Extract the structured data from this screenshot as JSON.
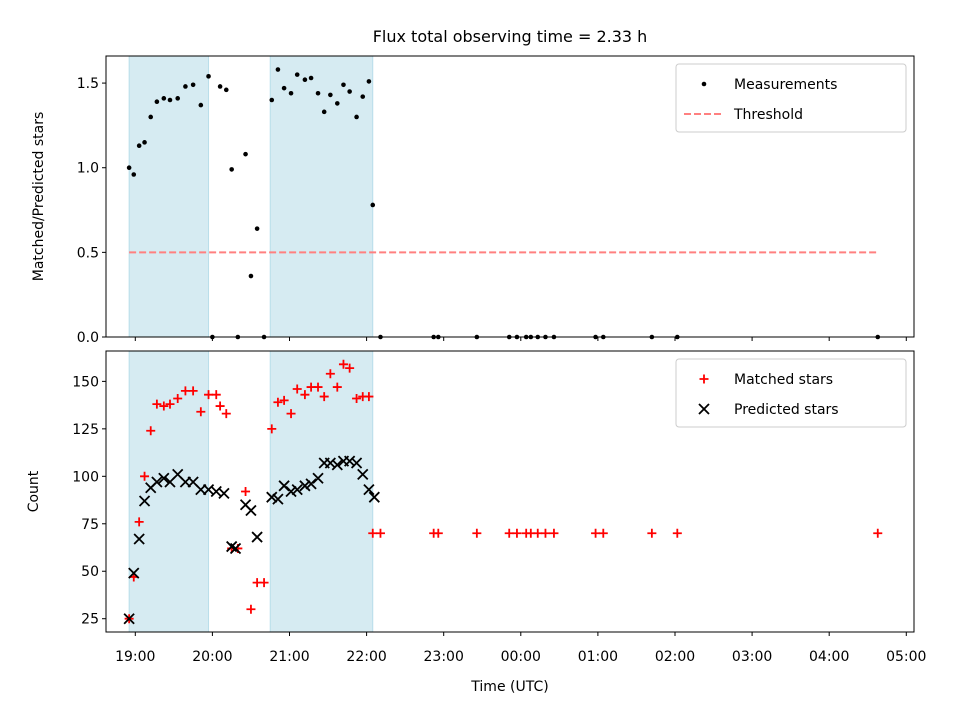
{
  "chart_data": [
    {
      "type": "scatter",
      "title": "Flux total observing time = 2.33 h",
      "xlabel": "",
      "ylabel": "Matched/Predicted stars",
      "xlim": [
        18.62,
        29.1
      ],
      "ylim": [
        0,
        1.66
      ],
      "yticks": [
        0.0,
        0.5,
        1.0,
        1.5
      ],
      "ytick_labels": [
        "0.0",
        "0.5",
        "1.0",
        "1.5"
      ],
      "legend_position": "upper right",
      "series": [
        {
          "name": "Measurements",
          "marker": "dot",
          "color": "#000000",
          "points": [
            [
              18.92,
              1.0
            ],
            [
              18.98,
              0.96
            ],
            [
              19.05,
              1.13
            ],
            [
              19.12,
              1.15
            ],
            [
              19.2,
              1.3
            ],
            [
              19.28,
              1.39
            ],
            [
              19.37,
              1.41
            ],
            [
              19.45,
              1.4
            ],
            [
              19.55,
              1.41
            ],
            [
              19.65,
              1.48
            ],
            [
              19.75,
              1.49
            ],
            [
              19.85,
              1.37
            ],
            [
              19.95,
              1.54
            ],
            [
              20.0,
              0.0
            ],
            [
              20.1,
              1.48
            ],
            [
              20.18,
              1.46
            ],
            [
              20.25,
              0.99
            ],
            [
              20.33,
              0.0
            ],
            [
              20.43,
              1.08
            ],
            [
              20.5,
              0.36
            ],
            [
              20.58,
              0.64
            ],
            [
              20.67,
              0.0
            ],
            [
              20.77,
              1.4
            ],
            [
              20.85,
              1.58
            ],
            [
              20.93,
              1.47
            ],
            [
              21.02,
              1.44
            ],
            [
              21.1,
              1.55
            ],
            [
              21.2,
              1.52
            ],
            [
              21.28,
              1.53
            ],
            [
              21.37,
              1.44
            ],
            [
              21.45,
              1.33
            ],
            [
              21.53,
              1.43
            ],
            [
              21.62,
              1.38
            ],
            [
              21.7,
              1.49
            ],
            [
              21.78,
              1.45
            ],
            [
              21.87,
              1.3
            ],
            [
              21.95,
              1.42
            ],
            [
              22.03,
              1.51
            ],
            [
              22.08,
              0.78
            ],
            [
              22.18,
              0.0
            ],
            [
              22.87,
              0.0
            ],
            [
              22.93,
              0.0
            ],
            [
              23.43,
              0.0
            ],
            [
              23.85,
              0.0
            ],
            [
              23.95,
              0.0
            ],
            [
              24.07,
              0.0
            ],
            [
              24.13,
              0.0
            ],
            [
              24.22,
              0.0
            ],
            [
              24.32,
              0.0
            ],
            [
              24.43,
              0.0
            ],
            [
              24.97,
              0.0
            ],
            [
              25.07,
              0.0
            ],
            [
              25.7,
              0.0
            ],
            [
              26.03,
              0.0
            ],
            [
              28.63,
              0.0
            ]
          ]
        },
        {
          "name": "Threshold",
          "line_style": "dashed",
          "color": "#ff8080",
          "x": [
            18.92,
            28.63
          ],
          "y": [
            0.5,
            0.5
          ]
        }
      ],
      "shaded_spans": [
        [
          18.92,
          19.95
        ],
        [
          20.75,
          22.08
        ]
      ],
      "shade_color": "#add8e6"
    },
    {
      "type": "scatter",
      "title": "",
      "xlabel": "Time (UTC)",
      "ylabel": "Count",
      "xlim": [
        18.62,
        29.1
      ],
      "ylim": [
        18,
        166
      ],
      "yticks": [
        25,
        50,
        75,
        100,
        125,
        150
      ],
      "ytick_labels": [
        "25",
        "50",
        "75",
        "100",
        "125",
        "150"
      ],
      "xticks": [
        19,
        20,
        21,
        22,
        23,
        24,
        25,
        26,
        27,
        28,
        29
      ],
      "xtick_labels": [
        "19:00",
        "20:00",
        "21:00",
        "22:00",
        "23:00",
        "00:00",
        "01:00",
        "02:00",
        "03:00",
        "04:00",
        "05:00"
      ],
      "legend_position": "upper right",
      "series": [
        {
          "name": "Matched stars",
          "marker": "plus",
          "color": "#ff0000",
          "points": [
            [
              18.92,
              25
            ],
            [
              18.98,
              47
            ],
            [
              19.05,
              76
            ],
            [
              19.12,
              100
            ],
            [
              19.2,
              124
            ],
            [
              19.28,
              138
            ],
            [
              19.37,
              137
            ],
            [
              19.45,
              138
            ],
            [
              19.55,
              141
            ],
            [
              19.65,
              145
            ],
            [
              19.75,
              145
            ],
            [
              19.85,
              134
            ],
            [
              19.95,
              143
            ],
            [
              20.05,
              143
            ],
            [
              20.1,
              137
            ],
            [
              20.18,
              133
            ],
            [
              20.25,
              62
            ],
            [
              20.33,
              62
            ],
            [
              20.43,
              92
            ],
            [
              20.5,
              30
            ],
            [
              20.58,
              44
            ],
            [
              20.67,
              44
            ],
            [
              20.77,
              125
            ],
            [
              20.85,
              139
            ],
            [
              20.93,
              140
            ],
            [
              21.02,
              133
            ],
            [
              21.1,
              146
            ],
            [
              21.2,
              143
            ],
            [
              21.28,
              147
            ],
            [
              21.37,
              147
            ],
            [
              21.45,
              142
            ],
            [
              21.53,
              154
            ],
            [
              21.62,
              147
            ],
            [
              21.7,
              159
            ],
            [
              21.78,
              157
            ],
            [
              21.87,
              141
            ],
            [
              21.95,
              142
            ],
            [
              22.03,
              142
            ],
            [
              22.08,
              70
            ],
            [
              22.18,
              70
            ],
            [
              22.87,
              70
            ],
            [
              22.93,
              70
            ],
            [
              23.43,
              70
            ],
            [
              23.85,
              70
            ],
            [
              23.95,
              70
            ],
            [
              24.07,
              70
            ],
            [
              24.13,
              70
            ],
            [
              24.22,
              70
            ],
            [
              24.32,
              70
            ],
            [
              24.43,
              70
            ],
            [
              24.97,
              70
            ],
            [
              25.07,
              70
            ],
            [
              25.7,
              70
            ],
            [
              26.03,
              70
            ],
            [
              28.63,
              70
            ]
          ]
        },
        {
          "name": "Predicted stars",
          "marker": "cross",
          "color": "#000000",
          "points": [
            [
              18.92,
              25
            ],
            [
              18.98,
              49
            ],
            [
              19.05,
              67
            ],
            [
              19.12,
              87
            ],
            [
              19.2,
              94
            ],
            [
              19.28,
              97
            ],
            [
              19.37,
              99
            ],
            [
              19.45,
              97
            ],
            [
              19.55,
              101
            ],
            [
              19.65,
              97
            ],
            [
              19.75,
              97
            ],
            [
              19.85,
              93
            ],
            [
              19.95,
              93
            ],
            [
              20.05,
              92
            ],
            [
              20.15,
              91
            ],
            [
              20.25,
              63
            ],
            [
              20.3,
              62
            ],
            [
              20.43,
              85
            ],
            [
              20.5,
              82
            ],
            [
              20.58,
              68
            ],
            [
              20.77,
              89
            ],
            [
              20.85,
              88
            ],
            [
              20.93,
              95
            ],
            [
              21.02,
              92
            ],
            [
              21.1,
              93
            ],
            [
              21.2,
              95
            ],
            [
              21.28,
              96
            ],
            [
              21.37,
              99
            ],
            [
              21.45,
              107
            ],
            [
              21.53,
              107
            ],
            [
              21.62,
              106
            ],
            [
              21.7,
              108
            ],
            [
              21.78,
              108
            ],
            [
              21.87,
              107
            ],
            [
              21.95,
              101
            ],
            [
              22.03,
              93
            ],
            [
              22.1,
              89
            ]
          ]
        }
      ],
      "shaded_spans": [
        [
          18.92,
          19.95
        ],
        [
          20.75,
          22.08
        ]
      ],
      "shade_color": "#add8e6"
    }
  ]
}
